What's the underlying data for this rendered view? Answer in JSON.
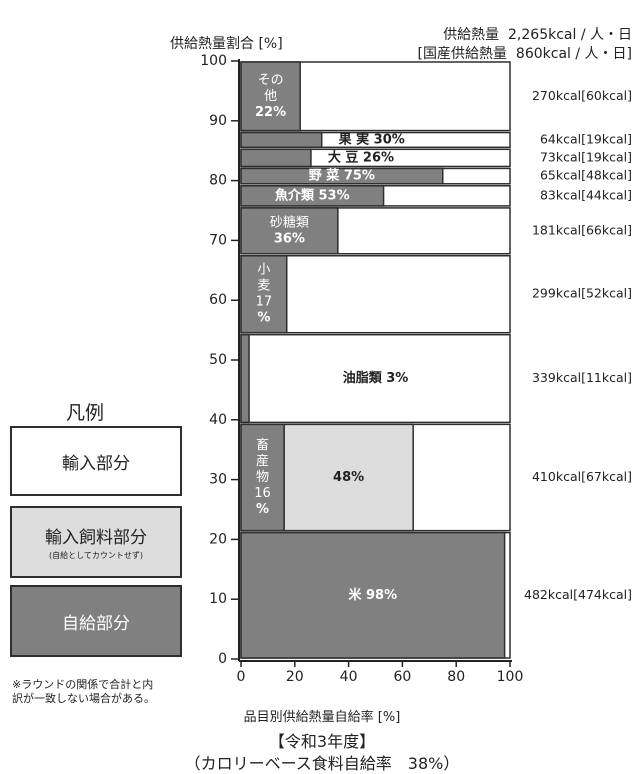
{
  "header": {
    "line1_label": "供給熱量",
    "line1_value": "2,265kcal / 人・日",
    "line2_label": "[国産供給熱量",
    "line2_value": "860kcal / 人・日]"
  },
  "legend": {
    "title": "凡例",
    "items": [
      {
        "label": "輸入部分",
        "sublabel": "",
        "color": "#ffffff",
        "text_color": "#222222"
      },
      {
        "label": "輸入飼料部分",
        "sublabel": "(自給としてカウントせず)",
        "color": "#dddddd",
        "text_color": "#222222"
      },
      {
        "label": "自給部分",
        "sublabel": "",
        "color": "#808080",
        "text_color": "#ffffff"
      }
    ]
  },
  "note": "※ラウンドの関係で合計と内訳が一致しない場合がある。",
  "footer": {
    "year": "【令和3年度】",
    "subtitle": "（カロリーベース食料自給率　38%）"
  },
  "colors": {
    "self_supply": "#808080",
    "feed": "#dddddd",
    "import": "#ffffff",
    "border": "#2e2e2e"
  },
  "chart_data": {
    "type": "bar",
    "orientation": "horizontal-mosaic",
    "ylabel": "供給熱量割合 [%]",
    "xlabel": "品目別供給熱量自給率 [%]",
    "xlim": [
      0,
      100
    ],
    "ylim": [
      0,
      100
    ],
    "x_ticks": [
      "0",
      "20",
      "40",
      "60",
      "80",
      "100"
    ],
    "y_ticks": [
      "0",
      "10",
      "20",
      "30",
      "40",
      "50",
      "60",
      "70",
      "80",
      "90",
      "100"
    ],
    "grid": false,
    "categories": [
      "米",
      "畜産物",
      "油脂類",
      "小麦",
      "砂糖類",
      "魚介類",
      "野菜",
      "大豆",
      "果実",
      "その他"
    ],
    "items": [
      {
        "name": "米",
        "y0": 0,
        "y1": 21.3,
        "self": 98,
        "feed": 0,
        "label_parts": [
          "米 98%"
        ],
        "label_in": "self",
        "kcal": "482kcal[474kcal]"
      },
      {
        "name": "畜産物",
        "y0": 21.3,
        "y1": 39.4,
        "self": 16,
        "feed": 48,
        "label_parts": [
          "畜",
          "産",
          "物",
          "16",
          "%"
        ],
        "label_in": "self",
        "feed_label": "48%",
        "kcal": "410kcal[67kcal]"
      },
      {
        "name": "油脂類",
        "y0": 39.4,
        "y1": 54.4,
        "self": 3,
        "feed": 0,
        "label_parts": [
          "油脂類 3%"
        ],
        "label_in": "import",
        "kcal": "339kcal[11kcal]"
      },
      {
        "name": "小麦",
        "y0": 54.4,
        "y1": 67.6,
        "self": 17,
        "feed": 0,
        "label_parts": [
          "小",
          "麦",
          "17",
          "%"
        ],
        "label_in": "self",
        "kcal": "299kcal[52kcal]"
      },
      {
        "name": "砂糖類",
        "y0": 67.6,
        "y1": 75.6,
        "self": 36,
        "feed": 0,
        "label_parts": [
          "砂糖類",
          "36%"
        ],
        "label_in": "self",
        "kcal": "181kcal[66kcal]"
      },
      {
        "name": "魚介類",
        "y0": 75.6,
        "y1": 79.3,
        "self": 53,
        "feed": 0,
        "label_parts": [
          "魚介類 53%"
        ],
        "label_in": "self",
        "kcal": "83kcal[44kcal]"
      },
      {
        "name": "野菜",
        "y0": 79.3,
        "y1": 82.2,
        "self": 75,
        "feed": 0,
        "label_parts": [
          "野 菜 75%"
        ],
        "label_in": "self",
        "kcal": "65kcal[48kcal]"
      },
      {
        "name": "大豆",
        "y0": 82.2,
        "y1": 85.4,
        "self": 26,
        "feed": 0,
        "label_parts": [
          "大 豆 26%"
        ],
        "label_in": "import",
        "kcal": "73kcal[19kcal]"
      },
      {
        "name": "果実",
        "y0": 85.4,
        "y1": 88.2,
        "self": 30,
        "feed": 0,
        "label_parts": [
          "果 実 30%"
        ],
        "label_in": "import",
        "kcal": "64kcal[19kcal]"
      },
      {
        "name": "その他",
        "y0": 88.2,
        "y1": 100,
        "self": 22,
        "feed": 0,
        "label_parts": [
          "その",
          "他",
          "22%"
        ],
        "label_in": "self",
        "kcal": "270kcal[60kcal]"
      }
    ]
  }
}
